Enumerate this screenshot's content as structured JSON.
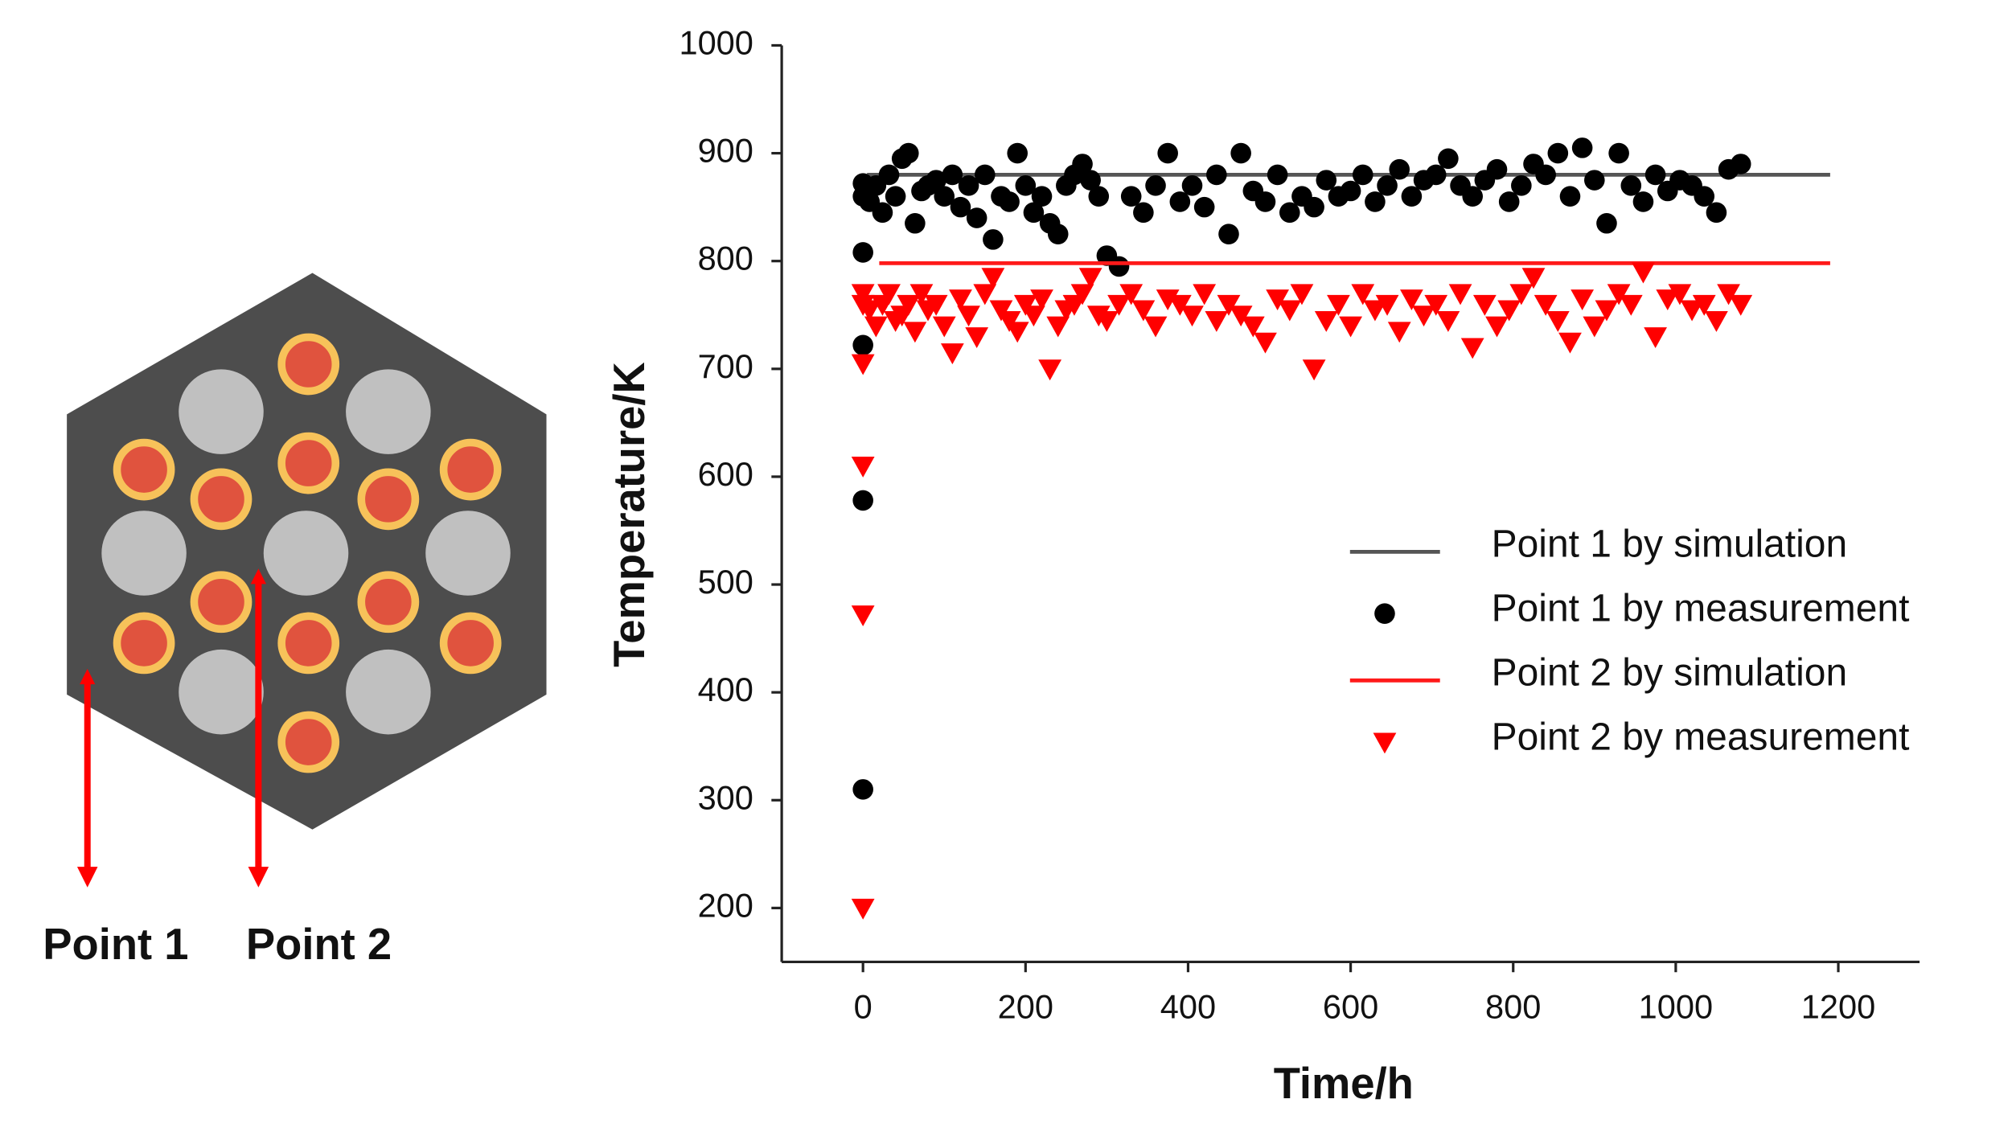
{
  "diagram_labels": [
    "Point 1",
    "Point 2"
  ],
  "chart_data": {
    "type": "scatter",
    "x_label": "Time/h",
    "y_label": "Temperature/K",
    "xlim": [
      -100,
      1300
    ],
    "xticks": [
      0,
      200,
      400,
      600,
      800,
      1000,
      1200
    ],
    "ylim": [
      150,
      1000
    ],
    "yticks": [
      200,
      300,
      400,
      500,
      600,
      700,
      800,
      900,
      1000
    ],
    "legend": "right",
    "series": [
      {
        "name": "Point 1 by simulation",
        "color": "#555555",
        "marker": "line",
        "x": [
          5,
          1190
        ],
        "values": [
          880,
          880
        ]
      },
      {
        "name": "Point 1 by measurement",
        "color": "#000000",
        "marker": "circle",
        "x": [
          0,
          0,
          0,
          0,
          0,
          0,
          8,
          16,
          24,
          32,
          40,
          48,
          56,
          64,
          72,
          80,
          90,
          100,
          110,
          120,
          130,
          140,
          150,
          160,
          170,
          180,
          190,
          200,
          210,
          220,
          230,
          240,
          250,
          260,
          270,
          280,
          290,
          300,
          315,
          330,
          345,
          360,
          375,
          390,
          405,
          420,
          435,
          450,
          465,
          480,
          495,
          510,
          525,
          540,
          555,
          570,
          585,
          600,
          615,
          630,
          645,
          660,
          675,
          690,
          705,
          720,
          735,
          750,
          765,
          780,
          795,
          810,
          825,
          840,
          855,
          870,
          885,
          900,
          915,
          930,
          945,
          960,
          975,
          990,
          1005,
          1020,
          1035,
          1050,
          1065,
          1080
        ],
        "values": [
          310,
          578,
          722,
          808,
          860,
          872,
          855,
          870,
          845,
          880,
          860,
          895,
          900,
          835,
          865,
          870,
          875,
          860,
          880,
          850,
          870,
          840,
          880,
          820,
          860,
          855,
          900,
          870,
          845,
          860,
          835,
          825,
          870,
          880,
          890,
          875,
          860,
          805,
          795,
          860,
          845,
          870,
          900,
          855,
          870,
          850,
          880,
          825,
          900,
          865,
          855,
          880,
          845,
          860,
          850,
          875,
          860,
          865,
          880,
          855,
          870,
          885,
          860,
          875,
          880,
          895,
          870,
          860,
          875,
          885,
          855,
          870,
          890,
          880,
          900,
          860,
          905,
          875,
          835,
          900,
          870,
          855,
          880,
          865,
          875,
          870,
          860,
          845,
          885,
          890
        ]
      },
      {
        "name": "Point 2 by simulation",
        "color": "#ff1a1a",
        "marker": "line",
        "x": [
          20,
          1190
        ],
        "values": [
          798,
          798
        ]
      },
      {
        "name": "Point 2 by measurement",
        "color": "#ff0000",
        "marker": "triangle",
        "x": [
          0,
          0,
          0,
          0,
          0,
          0,
          8,
          16,
          24,
          32,
          40,
          48,
          56,
          64,
          72,
          80,
          90,
          100,
          110,
          120,
          130,
          140,
          150,
          160,
          170,
          180,
          190,
          200,
          210,
          220,
          230,
          240,
          250,
          260,
          270,
          280,
          290,
          300,
          315,
          330,
          345,
          360,
          375,
          390,
          405,
          420,
          435,
          450,
          465,
          480,
          495,
          510,
          525,
          540,
          555,
          570,
          585,
          600,
          615,
          630,
          645,
          660,
          675,
          690,
          705,
          720,
          735,
          750,
          765,
          780,
          795,
          810,
          825,
          840,
          855,
          870,
          885,
          900,
          915,
          930,
          945,
          960,
          975,
          990,
          1005,
          1020,
          1035,
          1050,
          1065,
          1080
        ],
        "values": [
          200,
          472,
          610,
          705,
          760,
          770,
          755,
          740,
          760,
          770,
          745,
          750,
          760,
          735,
          770,
          755,
          760,
          740,
          715,
          765,
          750,
          730,
          770,
          785,
          755,
          745,
          735,
          760,
          750,
          765,
          700,
          740,
          755,
          760,
          770,
          785,
          750,
          745,
          760,
          770,
          755,
          740,
          765,
          760,
          750,
          770,
          745,
          760,
          750,
          740,
          725,
          765,
          755,
          770,
          700,
          745,
          760,
          740,
          770,
          755,
          760,
          735,
          765,
          750,
          760,
          745,
          770,
          720,
          760,
          740,
          755,
          770,
          785,
          760,
          745,
          725,
          765,
          740,
          755,
          770,
          760,
          790,
          730,
          765,
          770,
          755,
          760,
          745,
          770,
          760
        ]
      }
    ]
  }
}
